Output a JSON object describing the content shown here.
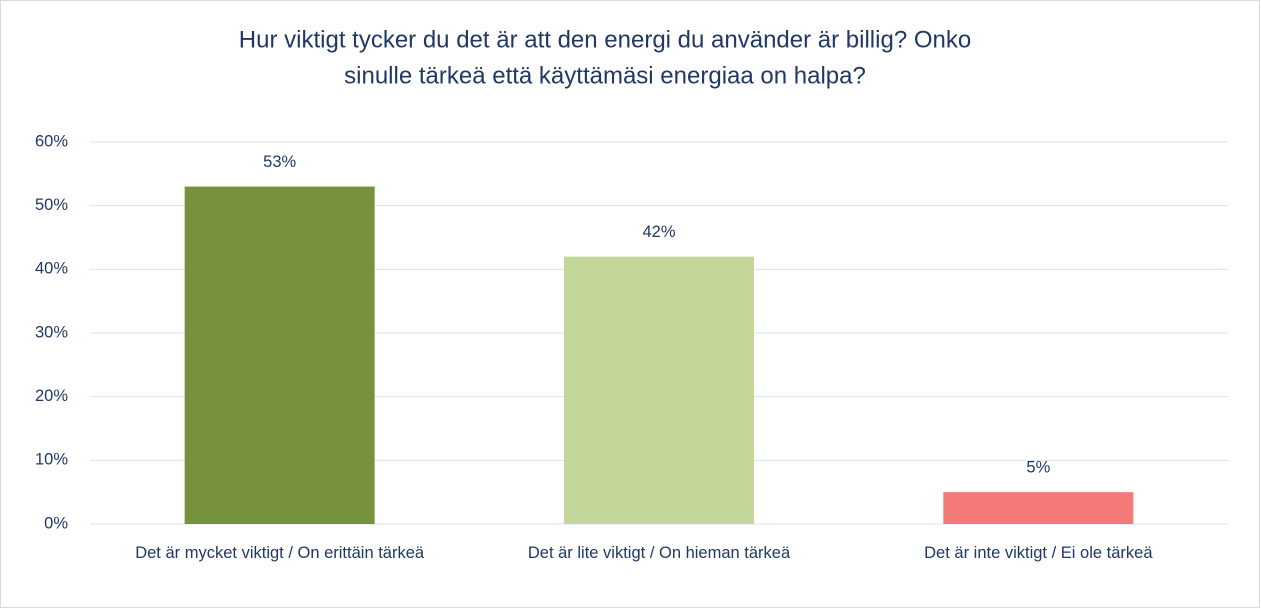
{
  "chart_data": {
    "type": "bar",
    "title": [
      "Hur viktigt tycker du det är att den energi du använder är billig? Onko",
      "sinulle tärkeä että käyttämäsi energiaa on halpa?"
    ],
    "categories": [
      "Det är mycket viktigt / On erittäin tärkeä",
      "Det är lite viktigt / On hieman tärkeä",
      "Det är inte viktigt / Ei ole tärkeä"
    ],
    "values": [
      53,
      42,
      5
    ],
    "value_labels": [
      "53%",
      "42%",
      "5%"
    ],
    "colors": [
      "#76923c",
      "#c4d79b",
      "#f47a78"
    ],
    "ylim": [
      0,
      60
    ],
    "yticks": [
      {
        "value": 0,
        "label": "0%"
      },
      {
        "value": 10,
        "label": "10%"
      },
      {
        "value": 20,
        "label": "20%"
      },
      {
        "value": 30,
        "label": "30%"
      },
      {
        "value": 40,
        "label": "40%"
      },
      {
        "value": 50,
        "label": "50%"
      },
      {
        "value": 60,
        "label": "60%"
      }
    ],
    "grid": true
  }
}
